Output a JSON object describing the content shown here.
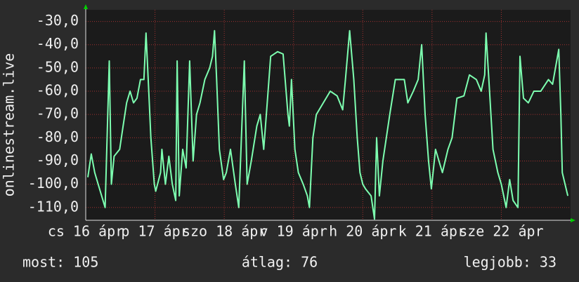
{
  "chart_data": {
    "type": "line",
    "ylabel": "onlinestream.live",
    "xlim": [
      0,
      7
    ],
    "xticks": [
      {
        "value": 0,
        "label": "cs 16 ápr"
      },
      {
        "value": 1,
        "label": "p 17 ápr"
      },
      {
        "value": 2,
        "label": "szo 18 ápr"
      },
      {
        "value": 3,
        "label": "v 19 ápr"
      },
      {
        "value": 4,
        "label": "h 20 ápr"
      },
      {
        "value": 5,
        "label": "k 21 ápr"
      },
      {
        "value": 6,
        "label": "sze 22 ápr"
      }
    ],
    "ylim": [
      -115.5,
      -25
    ],
    "yticks": [
      {
        "value": -30,
        "label": "-30,0"
      },
      {
        "value": -40,
        "label": "-40,0"
      },
      {
        "value": -50,
        "label": "-50,0"
      },
      {
        "value": -60,
        "label": "-60,0"
      },
      {
        "value": -70,
        "label": "-70,0"
      },
      {
        "value": -80,
        "label": "-80,0"
      },
      {
        "value": -90,
        "label": "-90,0"
      },
      {
        "value": -100,
        "label": "-100,0"
      },
      {
        "value": -110,
        "label": "-110,0"
      }
    ],
    "grid": true,
    "series": [
      {
        "color": "#7dffb0",
        "x": [
          0.03,
          0.08,
          0.13,
          0.18,
          0.28,
          0.34,
          0.37,
          0.41,
          0.49,
          0.54,
          0.59,
          0.64,
          0.69,
          0.74,
          0.79,
          0.84,
          0.87,
          0.91,
          0.94,
          0.99,
          1.01,
          1.08,
          1.1,
          1.15,
          1.2,
          1.25,
          1.3,
          1.32,
          1.35,
          1.4,
          1.45,
          1.5,
          1.55,
          1.6,
          1.65,
          1.72,
          1.79,
          1.83,
          1.86,
          1.89,
          1.93,
          1.99,
          2.03,
          2.09,
          2.16,
          2.21,
          2.29,
          2.33,
          2.39,
          2.47,
          2.52,
          2.57,
          2.62,
          2.67,
          2.77,
          2.85,
          2.92,
          2.94,
          2.97,
          3.02,
          3.07,
          3.14,
          3.2,
          3.23,
          3.28,
          3.33,
          3.43,
          3.53,
          3.63,
          3.71,
          3.75,
          3.81,
          3.87,
          3.92,
          3.96,
          4.0,
          4.04,
          4.12,
          4.17,
          4.2,
          4.24,
          4.29,
          4.34,
          4.39,
          4.47,
          4.6,
          4.65,
          4.73,
          4.8,
          4.85,
          4.9,
          4.95,
          4.99,
          5.05,
          5.1,
          5.15,
          5.23,
          5.29,
          5.36,
          5.46,
          5.54,
          5.64,
          5.71,
          5.76,
          5.78,
          5.83,
          5.88,
          5.95,
          6.0,
          6.07,
          6.12,
          6.17,
          6.24,
          6.27,
          6.32,
          6.39,
          6.47,
          6.57,
          6.68,
          6.74,
          6.83,
          6.86,
          6.88,
          6.96
        ],
        "values": [
          -97,
          -87,
          -95,
          -100,
          -110,
          -47,
          -100,
          -88,
          -85,
          -75,
          -65,
          -60,
          -65,
          -63,
          -55,
          -55,
          -35,
          -60,
          -80,
          -100,
          -103,
          -95,
          -85,
          -100,
          -88,
          -100,
          -107,
          -47,
          -105,
          -85,
          -93,
          -47,
          -90,
          -70,
          -65,
          -55,
          -50,
          -45,
          -34,
          -55,
          -85,
          -98,
          -95,
          -85,
          -100,
          -110,
          -47,
          -100,
          -90,
          -75,
          -70,
          -85,
          -65,
          -45,
          -43,
          -44,
          -70,
          -75,
          -55,
          -85,
          -95,
          -100,
          -105,
          -110,
          -80,
          -70,
          -65,
          -60,
          -62,
          -68,
          -55,
          -34,
          -55,
          -80,
          -95,
          -100,
          -102,
          -105,
          -115,
          -80,
          -105,
          -90,
          -80,
          -70,
          -55,
          -55,
          -65,
          -60,
          -55,
          -40,
          -70,
          -90,
          -102,
          -85,
          -90,
          -95,
          -85,
          -80,
          -63,
          -62,
          -53,
          -55,
          -60,
          -53,
          -35,
          -60,
          -85,
          -95,
          -100,
          -110,
          -98,
          -107,
          -110,
          -45,
          -63,
          -65,
          -60,
          -60,
          -55,
          -57,
          -42,
          -70,
          -95,
          -105
        ]
      }
    ],
    "stats": [
      "most: 105",
      "átlag: 76",
      "legjobb: 33"
    ]
  }
}
